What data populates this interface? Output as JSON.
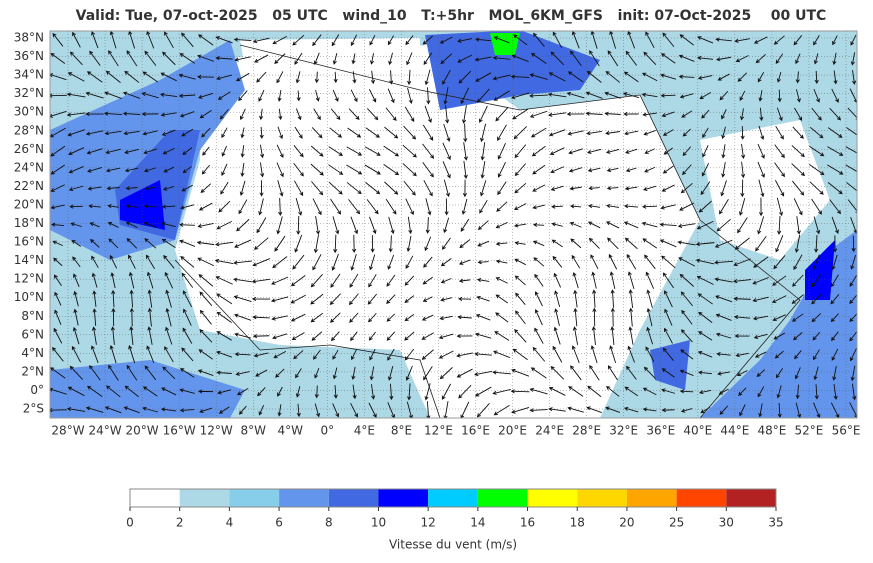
{
  "header": {
    "title": "Valid: Tue, 07-oct-2025   05 UTC   wind_10   T:+5hr   MOL_6KM_GFS   init: 07-Oct-2025    00 UTC"
  },
  "map": {
    "lat_ticks": [
      {
        "value": 38,
        "label": "38°N"
      },
      {
        "value": 36,
        "label": "36°N"
      },
      {
        "value": 34,
        "label": "34°N"
      },
      {
        "value": 32,
        "label": "32°N"
      },
      {
        "value": 30,
        "label": "30°N"
      },
      {
        "value": 28,
        "label": "28°N"
      },
      {
        "value": 26,
        "label": "26°N"
      },
      {
        "value": 24,
        "label": "24°N"
      },
      {
        "value": 22,
        "label": "22°N"
      },
      {
        "value": 20,
        "label": "20°N"
      },
      {
        "value": 18,
        "label": "18°N"
      },
      {
        "value": 16,
        "label": "16°N"
      },
      {
        "value": 14,
        "label": "14°N"
      },
      {
        "value": 12,
        "label": "12°N"
      },
      {
        "value": 10,
        "label": "10°N"
      },
      {
        "value": 8,
        "label": "8°N"
      },
      {
        "value": 6,
        "label": "6°N"
      },
      {
        "value": 4,
        "label": "4°N"
      },
      {
        "value": 2,
        "label": "2°N"
      },
      {
        "value": 0,
        "label": "0°"
      },
      {
        "value": -2,
        "label": "2°S"
      }
    ],
    "lon_ticks": [
      {
        "value": -28,
        "label": "28°W"
      },
      {
        "value": -24,
        "label": "24°W"
      },
      {
        "value": -20,
        "label": "20°W"
      },
      {
        "value": -16,
        "label": "16°W"
      },
      {
        "value": -12,
        "label": "12°W"
      },
      {
        "value": -8,
        "label": "8°W"
      },
      {
        "value": -4,
        "label": "4°W"
      },
      {
        "value": 0,
        "label": "0°"
      },
      {
        "value": 4,
        "label": "4°E"
      },
      {
        "value": 8,
        "label": "8°E"
      },
      {
        "value": 12,
        "label": "12°E"
      },
      {
        "value": 16,
        "label": "16°E"
      },
      {
        "value": 20,
        "label": "20°E"
      },
      {
        "value": 24,
        "label": "24°E"
      },
      {
        "value": 28,
        "label": "28°E"
      },
      {
        "value": 32,
        "label": "32°E"
      },
      {
        "value": 36,
        "label": "36°E"
      },
      {
        "value": 40,
        "label": "40°E"
      },
      {
        "value": 44,
        "label": "44°E"
      },
      {
        "value": 48,
        "label": "48°E"
      },
      {
        "value": 52,
        "label": "52°E"
      },
      {
        "value": 56,
        "label": "56°E"
      }
    ]
  },
  "colorbar": {
    "ticks": [
      0,
      2,
      4,
      6,
      8,
      10,
      12,
      14,
      16,
      18,
      20,
      25,
      30,
      35
    ],
    "colors": [
      "#ffffff",
      "#add8e6",
      "#87ceeb",
      "#6495ed",
      "#4169e1",
      "#0000ff",
      "#00ccff",
      "#00ff00",
      "#ffff00",
      "#ffd700",
      "#ffa500",
      "#ff4500",
      "#b22222"
    ],
    "label": "Vitesse du vent (m/s)"
  }
}
